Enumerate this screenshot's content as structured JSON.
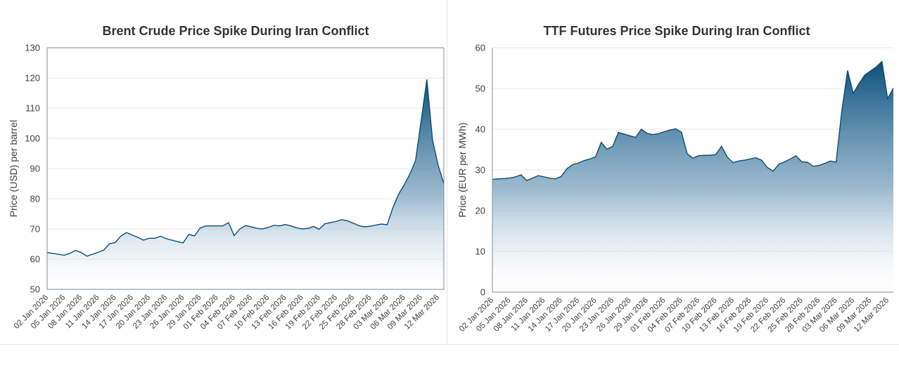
{
  "colors": {
    "accent": "#0b4f7c",
    "fill_top": "#0b4f7c",
    "fill_bottom": "#ffffff",
    "grid": "#e8e8e8",
    "axis": "#7f8c99",
    "text": "#404040"
  },
  "chart_data": [
    {
      "type": "area",
      "title": "Brent Crude Price Spike During Iran Conflict",
      "ylabel": "Price (USD) per barrel",
      "xlabel": "",
      "ylim": [
        50,
        130
      ],
      "yticks": [
        50,
        60,
        70,
        80,
        90,
        100,
        110,
        120,
        130
      ],
      "grid": true,
      "x_tick_labels": [
        "02 Jan 2026",
        "05 Jan 2026",
        "08 Jan 2026",
        "11 Jan 2026",
        "14 Jan 2026",
        "17 Jan 2026",
        "20 Jan 2026",
        "23 Jan 2026",
        "26 Jan 2026",
        "29 Jan 2026",
        "01 Feb 2026",
        "04 Feb 2026",
        "07 Feb 2026",
        "10 Feb 2026",
        "13 Feb 2026",
        "16 Feb 2026",
        "19 Feb 2026",
        "22 Feb 2026",
        "25 Feb 2026",
        "28 Feb 2026",
        "03 Mar 2026",
        "06 Mar 2026",
        "09 Mar 2026",
        "12 Mar 2026"
      ],
      "x_range": [
        "2026-01-02",
        "2026-03-13"
      ],
      "series": [
        {
          "x": [
            "2026-01-02",
            "2026-01-03",
            "2026-01-04",
            "2026-01-05",
            "2026-01-06",
            "2026-01-07",
            "2026-01-08",
            "2026-01-09",
            "2026-01-10",
            "2026-01-11",
            "2026-01-12",
            "2026-01-13",
            "2026-01-14",
            "2026-01-15",
            "2026-01-16",
            "2026-01-17",
            "2026-01-18",
            "2026-01-19",
            "2026-01-20",
            "2026-01-21",
            "2026-01-22",
            "2026-01-23",
            "2026-01-24",
            "2026-01-25",
            "2026-01-26",
            "2026-01-27",
            "2026-01-28",
            "2026-01-29",
            "2026-01-30",
            "2026-01-31",
            "2026-02-01",
            "2026-02-02",
            "2026-02-03",
            "2026-02-04",
            "2026-02-05",
            "2026-02-06",
            "2026-02-07",
            "2026-02-08",
            "2026-02-09",
            "2026-02-10",
            "2026-02-11",
            "2026-02-12",
            "2026-02-13",
            "2026-02-14",
            "2026-02-15",
            "2026-02-16",
            "2026-02-17",
            "2026-02-18",
            "2026-02-19",
            "2026-02-20",
            "2026-02-21",
            "2026-02-22",
            "2026-02-23",
            "2026-02-24",
            "2026-02-25",
            "2026-02-26",
            "2026-02-27",
            "2026-02-28",
            "2026-03-01",
            "2026-03-02",
            "2026-03-03",
            "2026-03-04",
            "2026-03-05",
            "2026-03-06",
            "2026-03-07",
            "2026-03-08",
            "2026-03-09",
            "2026-03-10",
            "2026-03-11",
            "2026-03-12",
            "2026-03-13"
          ],
          "values": [
            62.2,
            61.9,
            61.6,
            61.3,
            61.9,
            62.9,
            62.2,
            61.0,
            61.6,
            62.3,
            63.0,
            65.1,
            65.5,
            67.6,
            68.8,
            68.0,
            67.2,
            66.3,
            66.9,
            66.9,
            67.6,
            66.8,
            66.3,
            65.8,
            65.4,
            68.2,
            67.7,
            70.3,
            71.0,
            71.0,
            71.0,
            71.0,
            72.1,
            67.8,
            70.0,
            71.1,
            70.7,
            70.2,
            70.0,
            70.5,
            71.2,
            71.0,
            71.5,
            71.0,
            70.4,
            70.0,
            70.2,
            70.8,
            69.9,
            71.7,
            72.1,
            72.5,
            73.1,
            72.7,
            71.9,
            71.1,
            70.7,
            70.9,
            71.3,
            71.6,
            71.4,
            77.0,
            81.5,
            84.6,
            88.2,
            92.6,
            106.0,
            119.5,
            99.4,
            91.0,
            85.0
          ]
        }
      ]
    },
    {
      "type": "area",
      "title": "TTF Futures Price Spike During Iran Conflict",
      "ylabel": "Price (EUR per MWh)",
      "xlabel": "",
      "ylim": [
        0,
        60
      ],
      "yticks": [
        0,
        10,
        20,
        30,
        40,
        50,
        60
      ],
      "grid": true,
      "x_tick_labels": [
        "02 Jan 2026",
        "05 Jan 2026",
        "08 Jan 2026",
        "11 Jan 2026",
        "14 Jan 2026",
        "17 Jan 2026",
        "20 Jan 2026",
        "23 Jan 2026",
        "26 Jan 2026",
        "29 Jan 2026",
        "01 Feb 2026",
        "04 Feb 2026",
        "07 Feb 2026",
        "10 Feb 2026",
        "13 Feb 2026",
        "16 Feb 2026",
        "19 Feb 2026",
        "22 Feb 2026",
        "25 Feb 2026",
        "28 Feb 2026",
        "03 Mar 2026",
        "06 Mar 2026",
        "09 Mar 2026",
        "12 Mar 2026"
      ],
      "x_range": [
        "2026-01-02",
        "2026-03-13"
      ],
      "series": [
        {
          "x": [
            "2026-01-02",
            "2026-01-03",
            "2026-01-04",
            "2026-01-05",
            "2026-01-06",
            "2026-01-07",
            "2026-01-08",
            "2026-01-09",
            "2026-01-10",
            "2026-01-11",
            "2026-01-12",
            "2026-01-13",
            "2026-01-14",
            "2026-01-15",
            "2026-01-16",
            "2026-01-17",
            "2026-01-18",
            "2026-01-19",
            "2026-01-20",
            "2026-01-21",
            "2026-01-22",
            "2026-01-23",
            "2026-01-24",
            "2026-01-25",
            "2026-01-26",
            "2026-01-27",
            "2026-01-28",
            "2026-01-29",
            "2026-01-30",
            "2026-01-31",
            "2026-02-01",
            "2026-02-02",
            "2026-02-03",
            "2026-02-04",
            "2026-02-05",
            "2026-02-06",
            "2026-02-07",
            "2026-02-08",
            "2026-02-09",
            "2026-02-10",
            "2026-02-11",
            "2026-02-12",
            "2026-02-13",
            "2026-02-14",
            "2026-02-15",
            "2026-02-16",
            "2026-02-17",
            "2026-02-18",
            "2026-02-19",
            "2026-02-20",
            "2026-02-21",
            "2026-02-22",
            "2026-02-23",
            "2026-02-24",
            "2026-02-25",
            "2026-02-26",
            "2026-02-27",
            "2026-02-28",
            "2026-03-01",
            "2026-03-02",
            "2026-03-03",
            "2026-03-04",
            "2026-03-05",
            "2026-03-06",
            "2026-03-07",
            "2026-03-08",
            "2026-03-09",
            "2026-03-10",
            "2026-03-11",
            "2026-03-12",
            "2026-03-13"
          ],
          "values": [
            27.7,
            27.8,
            27.9,
            28.0,
            28.3,
            28.8,
            27.4,
            28.0,
            28.6,
            28.3,
            28.0,
            27.8,
            28.4,
            30.3,
            31.3,
            31.7,
            32.3,
            32.7,
            33.2,
            36.8,
            35.1,
            35.8,
            39.2,
            38.8,
            38.4,
            38.0,
            40.0,
            39.0,
            38.7,
            38.9,
            39.4,
            39.8,
            40.1,
            39.3,
            34.0,
            32.9,
            33.5,
            33.6,
            33.6,
            33.8,
            35.8,
            33.2,
            31.8,
            32.2,
            32.4,
            32.7,
            33.0,
            32.4,
            30.6,
            29.7,
            31.4,
            32.0,
            32.7,
            33.5,
            32.0,
            31.9,
            30.9,
            31.1,
            31.6,
            32.2,
            31.9,
            44.5,
            54.4,
            48.8,
            51.2,
            53.3,
            54.3,
            55.3,
            56.6,
            47.5,
            50.1
          ]
        }
      ]
    }
  ]
}
